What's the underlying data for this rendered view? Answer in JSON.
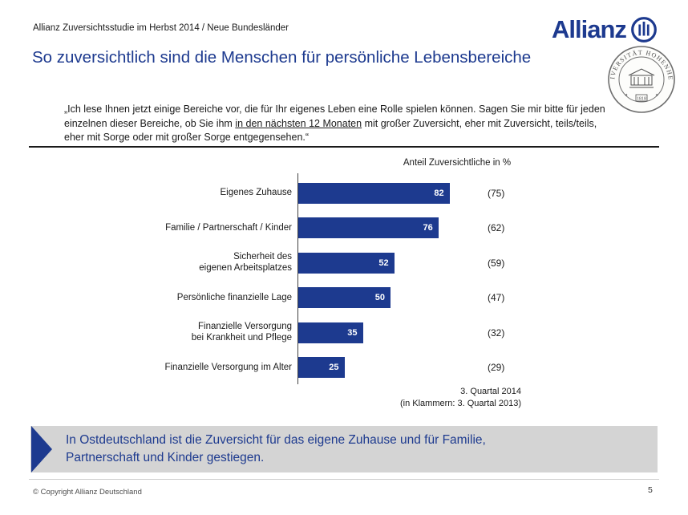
{
  "header": {
    "subtitle": "Allianz Zuversichtsstudie im Herbst 2014 / Neue Bundesländer",
    "brand": "Allianz"
  },
  "page": {
    "title": "So zuversichtlich sind die Menschen für persönliche Lebensbereiche"
  },
  "quote": {
    "part1": "„Ich lese Ihnen jetzt einige Bereiche vor, die für Ihr eigenes Leben eine Rolle spielen können. Sagen Sie mir bitte für jeden einzelnen dieser Bereiche, ob Sie ihm ",
    "underlined": "in den nächsten 12 Monaten",
    "part2": " mit großer Zuversicht, eher mit Zuversicht, teils/teils, eher mit Sorge oder mit großer Sorge entgegensehen.“"
  },
  "seal": {
    "text": "UNIVERSITÄT HOHENHEIM",
    "year": "1818"
  },
  "chart_data": {
    "type": "bar",
    "orientation": "horizontal",
    "title": "Anteil Zuversichtliche in %",
    "categories": [
      "Eigenes Zuhause",
      "Familie / Partnerschaft / Kinder",
      "Sicherheit des\neigenen Arbeitsplatzes",
      "Persönliche finanzielle Lage",
      "Finanzielle Versorgung\nbei Krankheit und Pflege",
      "Finanzielle Versorgung im Alter"
    ],
    "series": [
      {
        "name": "3. Quartal 2014",
        "values": [
          82,
          76,
          52,
          50,
          35,
          25
        ]
      },
      {
        "name": "3. Quartal 2013",
        "values": [
          75,
          62,
          59,
          47,
          32,
          29
        ]
      }
    ],
    "xlim": [
      0,
      100
    ],
    "bar_color": "#1d3a8f",
    "footnote": [
      "3. Quartal 2014",
      "(in Klammern: 3. Quartal 2013)"
    ]
  },
  "callout": {
    "text": "In Ostdeutschland ist die Zuversicht für das eigene Zuhause und für Familie, Partnerschaft und Kinder gestiegen."
  },
  "footer": {
    "copyright": "© Copyright Allianz Deutschland",
    "page_number": "5"
  }
}
